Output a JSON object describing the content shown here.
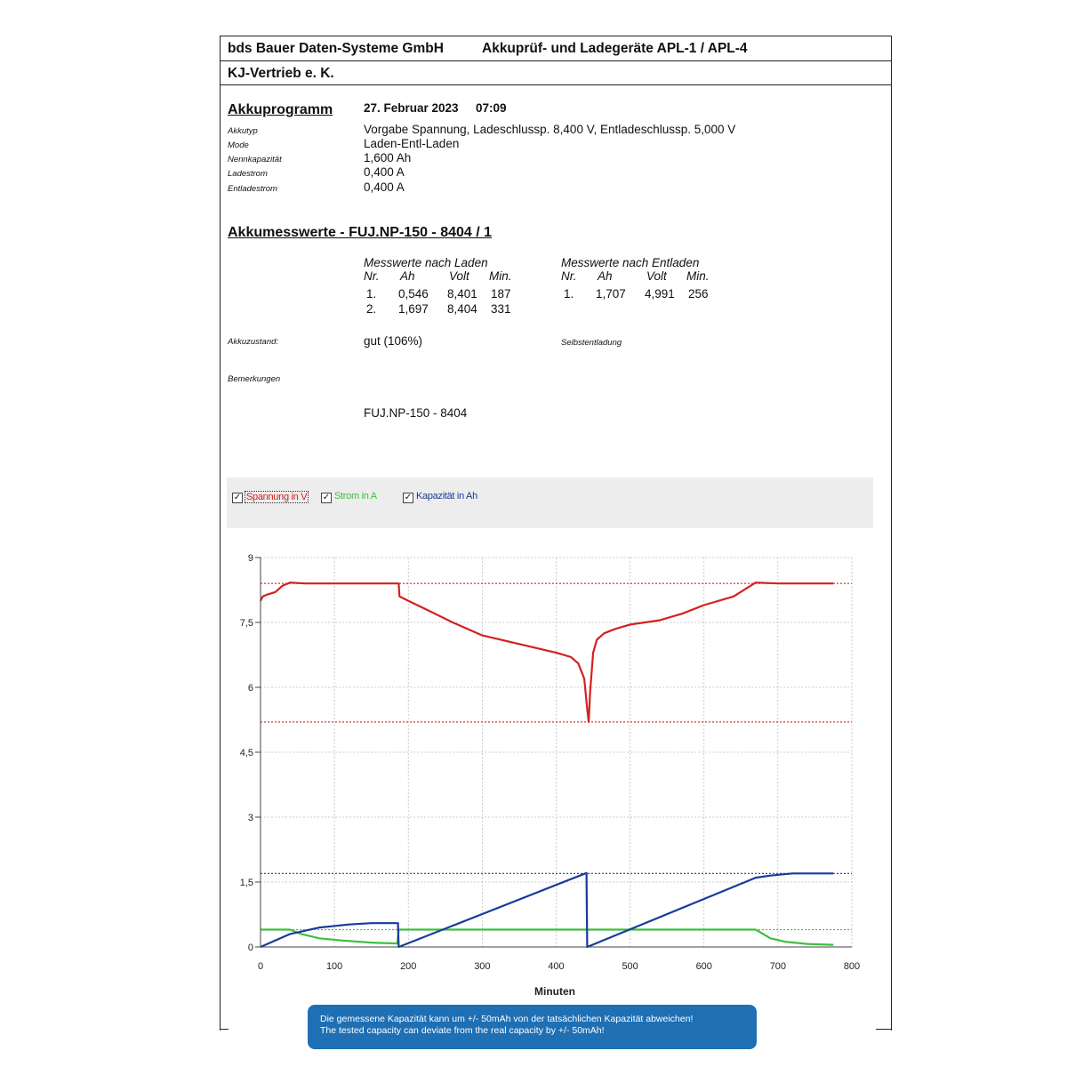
{
  "header": {
    "company": "bds Bauer Daten-Systeme GmbH",
    "product": "Akkuprüf- und Ladegeräte APL-1 / APL-4",
    "dealer": "KJ-Vertrieb e. K."
  },
  "program": {
    "title": "Akkuprogramm",
    "date": "27. Februar 2023",
    "time": "07:09",
    "rows": [
      {
        "label": "Akkutyp",
        "value": "Vorgabe Spannung, Ladeschlussp. 8,400 V, Entladeschlussp. 5,000 V"
      },
      {
        "label": "Mode",
        "value": "Laden-Entl-Laden"
      },
      {
        "label": "Nennkapazität",
        "value": "1,600 Ah"
      },
      {
        "label": "Ladestrom",
        "value": "0,400 A"
      },
      {
        "label": "Entladestrom",
        "value": "0,400 A"
      }
    ]
  },
  "measurements": {
    "title": "Akkumesswerte - FUJ.NP-150 - 8404 / 1",
    "charge": {
      "heading": "Messwerte nach Laden",
      "columns": [
        "Nr.",
        "Ah",
        "Volt",
        "Min."
      ],
      "rows": [
        [
          "1.",
          "0,546",
          "8,401",
          "187"
        ],
        [
          "2.",
          "1,697",
          "8,404",
          "331"
        ]
      ]
    },
    "discharge": {
      "heading": "Messwerte nach Entladen",
      "columns": [
        "Nr.",
        "Ah",
        "Volt",
        "Min."
      ],
      "rows": [
        [
          "1.",
          "1,707",
          "4,991",
          "256"
        ]
      ]
    },
    "state_label": "Akkuzustand:",
    "state_value": "gut (106%)",
    "self_discharge_label": "Selbstentladung",
    "remarks_label": "Bemerkungen",
    "remarks_value": "FUJ.NP-150 - 8404"
  },
  "legend": {
    "items": [
      {
        "label": "Spannung in V",
        "checked": true,
        "color": "#d42020"
      },
      {
        "label": "Strom in A",
        "checked": true,
        "color": "#3fbf3f"
      },
      {
        "label": "Kapazität in Ah",
        "checked": true,
        "color": "#1a3a9a"
      }
    ]
  },
  "chart_data": {
    "type": "line",
    "xlabel": "Minuten",
    "ylabel": "",
    "xlim": [
      0,
      800
    ],
    "ylim": [
      0,
      9
    ],
    "x_ticks": [
      "0",
      "100",
      "200",
      "300",
      "400",
      "500",
      "600",
      "700",
      "800"
    ],
    "y_ticks": [
      "0",
      "1,5",
      "3",
      "4,5",
      "6",
      "7,5",
      "9"
    ],
    "grid": true,
    "reference_lines": [
      {
        "y": 8.4,
        "color": "#d42020"
      },
      {
        "y": 5.2,
        "color": "#d42020"
      },
      {
        "y": 1.7,
        "color": "#1a3a9a"
      },
      {
        "y": 0.4,
        "color": "#3fbf3f"
      }
    ],
    "series": [
      {
        "name": "Spannung in V",
        "color": "#d42020",
        "points": [
          [
            0,
            8.0
          ],
          [
            3,
            8.1
          ],
          [
            10,
            8.15
          ],
          [
            20,
            8.2
          ],
          [
            30,
            8.35
          ],
          [
            40,
            8.42
          ],
          [
            60,
            8.4
          ],
          [
            100,
            8.4
          ],
          [
            185,
            8.4
          ],
          [
            187,
            8.4
          ],
          [
            188,
            8.1
          ],
          [
            200,
            8.0
          ],
          [
            230,
            7.75
          ],
          [
            260,
            7.5
          ],
          [
            300,
            7.2
          ],
          [
            350,
            7.0
          ],
          [
            400,
            6.8
          ],
          [
            420,
            6.7
          ],
          [
            430,
            6.55
          ],
          [
            438,
            6.2
          ],
          [
            442,
            5.5
          ],
          [
            444,
            5.2
          ],
          [
            446,
            5.9
          ],
          [
            450,
            6.8
          ],
          [
            455,
            7.1
          ],
          [
            465,
            7.25
          ],
          [
            480,
            7.35
          ],
          [
            500,
            7.45
          ],
          [
            540,
            7.55
          ],
          [
            570,
            7.7
          ],
          [
            600,
            7.9
          ],
          [
            640,
            8.1
          ],
          [
            670,
            8.42
          ],
          [
            700,
            8.4
          ],
          [
            775,
            8.4
          ]
        ]
      },
      {
        "name": "Strom in A",
        "color": "#3fbf3f",
        "points": [
          [
            0,
            0.4
          ],
          [
            40,
            0.4
          ],
          [
            55,
            0.3
          ],
          [
            80,
            0.2
          ],
          [
            110,
            0.15
          ],
          [
            150,
            0.1
          ],
          [
            185,
            0.08
          ],
          [
            187,
            0.4
          ],
          [
            440,
            0.4
          ],
          [
            444,
            0.4
          ],
          [
            660,
            0.4
          ],
          [
            670,
            0.4
          ],
          [
            690,
            0.2
          ],
          [
            710,
            0.12
          ],
          [
            740,
            0.07
          ],
          [
            775,
            0.05
          ]
        ]
      },
      {
        "name": "Kapazität in Ah",
        "color": "#1a3a9a",
        "points": [
          [
            0,
            0
          ],
          [
            40,
            0.3
          ],
          [
            80,
            0.45
          ],
          [
            120,
            0.52
          ],
          [
            150,
            0.55
          ],
          [
            186,
            0.55
          ],
          [
            187,
            0
          ],
          [
            441,
            1.71
          ],
          [
            442,
            0
          ],
          [
            670,
            1.6
          ],
          [
            690,
            1.65
          ],
          [
            720,
            1.7
          ],
          [
            775,
            1.7
          ]
        ]
      }
    ]
  },
  "notice": {
    "line1": "Die gemessene Kapazität kann um +/- 50mAh von der tatsächlichen Kapazität abweichen!",
    "line2": "The tested capacity can deviate from the real capacity by +/- 50mAh!"
  }
}
